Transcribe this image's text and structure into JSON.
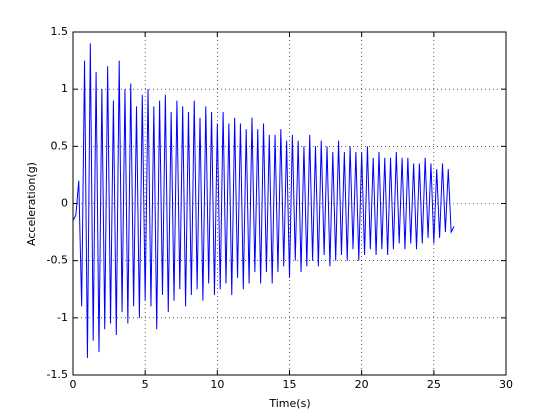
{
  "chart_data": {
    "type": "line",
    "xlabel": "Time(s)",
    "ylabel": "Acceleration(g)",
    "x": [
      0,
      0.2,
      0.4,
      0.6,
      0.8,
      1.0,
      1.2,
      1.4,
      1.6,
      1.8,
      2.0,
      2.2,
      2.4,
      2.6,
      2.8,
      3.0,
      3.2,
      3.4,
      3.6,
      3.8,
      4.0,
      4.2,
      4.4,
      4.6,
      4.8,
      5.0,
      5.2,
      5.4,
      5.6,
      5.8,
      6.0,
      6.2,
      6.4,
      6.6,
      6.8,
      7.0,
      7.2,
      7.4,
      7.6,
      7.8,
      8.0,
      8.2,
      8.4,
      8.6,
      8.8,
      9.0,
      9.2,
      9.4,
      9.6,
      9.8,
      10.0,
      10.2,
      10.4,
      10.6,
      10.8,
      11.0,
      11.2,
      11.4,
      11.6,
      11.8,
      12.0,
      12.2,
      12.4,
      12.6,
      12.8,
      13.0,
      13.2,
      13.4,
      13.6,
      13.8,
      14.0,
      14.2,
      14.4,
      14.6,
      14.8,
      15.0,
      15.2,
      15.4,
      15.6,
      15.8,
      16.0,
      16.2,
      16.4,
      16.6,
      16.8,
      17.0,
      17.2,
      17.4,
      17.6,
      17.8,
      18.0,
      18.2,
      18.4,
      18.6,
      18.8,
      19.0,
      19.2,
      19.4,
      19.6,
      19.8,
      20.0,
      20.2,
      20.4,
      20.6,
      20.8,
      21.0,
      21.2,
      21.4,
      21.6,
      21.8,
      22.0,
      22.2,
      22.4,
      22.6,
      22.8,
      23.0,
      23.2,
      23.4,
      23.6,
      23.8,
      24.0,
      24.2,
      24.4,
      24.6,
      24.8,
      25.0,
      25.2,
      25.4,
      25.6,
      25.8,
      26.0,
      26.2,
      26.4
    ],
    "values": [
      -0.15,
      -0.1,
      0.2,
      -0.9,
      1.25,
      -1.35,
      1.4,
      -1.2,
      1.15,
      -1.3,
      1.0,
      -1.1,
      1.2,
      -1.05,
      0.9,
      -1.15,
      1.25,
      -0.95,
      1.0,
      -1.05,
      1.05,
      -0.9,
      0.85,
      -1.0,
      0.95,
      -0.85,
      1.0,
      -0.9,
      0.85,
      -1.1,
      0.9,
      -0.8,
      0.95,
      -0.95,
      0.8,
      -0.85,
      0.9,
      -0.75,
      0.85,
      -0.9,
      0.8,
      -0.8,
      0.9,
      -0.75,
      0.75,
      -0.85,
      0.85,
      -0.7,
      0.8,
      -0.8,
      0.7,
      -0.75,
      0.8,
      -0.7,
      0.7,
      -0.8,
      0.75,
      -0.65,
      0.7,
      -0.75,
      0.65,
      -0.7,
      0.75,
      -0.6,
      0.65,
      -0.7,
      0.7,
      -0.6,
      0.6,
      -0.7,
      0.6,
      -0.6,
      0.65,
      -0.55,
      0.55,
      -0.65,
      0.6,
      -0.5,
      0.55,
      -0.6,
      0.5,
      -0.55,
      0.6,
      -0.5,
      0.5,
      -0.55,
      0.55,
      -0.45,
      0.5,
      -0.55,
      0.45,
      -0.5,
      0.55,
      -0.45,
      0.45,
      -0.5,
      0.5,
      -0.4,
      0.45,
      -0.5,
      0.45,
      -0.45,
      0.5,
      -0.4,
      0.4,
      -0.45,
      0.45,
      -0.4,
      0.4,
      -0.45,
      0.4,
      -0.4,
      0.45,
      -0.35,
      0.4,
      -0.4,
      0.4,
      -0.35,
      0.35,
      -0.4,
      0.35,
      -0.35,
      0.4,
      -0.3,
      0.35,
      -0.35,
      0.3,
      -0.3,
      0.35,
      -0.25,
      0.3,
      -0.25,
      -0.2
    ],
    "color": "#0000ff",
    "xlim": [
      0,
      30
    ],
    "xticks": [
      0,
      5,
      10,
      15,
      20,
      25,
      30
    ],
    "ylim": [
      -1.5,
      1.5
    ],
    "yticks": [
      -1.5,
      -1,
      -0.5,
      0,
      0.5,
      1,
      1.5
    ],
    "grid": true
  }
}
